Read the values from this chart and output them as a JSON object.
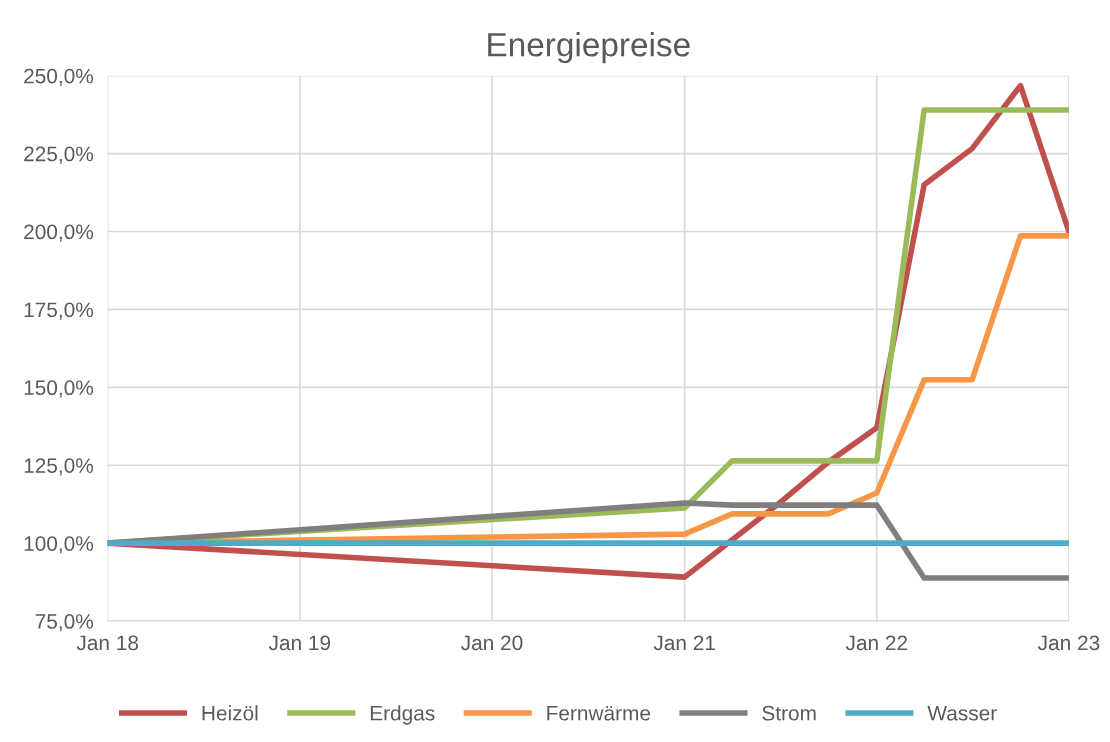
{
  "chart_data": {
    "type": "line",
    "title": "Energiepreise",
    "x": [
      "2018-01",
      "2021-01",
      "2021-04",
      "2021-07",
      "2021-10",
      "2022-01",
      "2022-04",
      "2022-07",
      "2022-10",
      "2023-01"
    ],
    "series": [
      {
        "name": "Heizöl",
        "color": "#c0504d",
        "values": [
          100,
          89.1,
          101,
          113,
          126,
          137,
          215,
          226.6,
          246.8,
          200
        ]
      },
      {
        "name": "Erdgas",
        "color": "#9bbb59",
        "values": [
          100,
          111.3,
          126.4,
          126.4,
          126.4,
          126.4,
          239,
          239,
          239,
          239
        ]
      },
      {
        "name": "Fernwärme",
        "color": "#f79646",
        "values": [
          100,
          102.9,
          109.4,
          109.4,
          109.4,
          116.1,
          152.4,
          152.4,
          198.6,
          198.6
        ]
      },
      {
        "name": "Strom",
        "color": "#7f7f7f",
        "values": [
          100,
          112.9,
          112.2,
          112.2,
          112.2,
          112.2,
          88.8,
          88.8,
          88.8,
          88.8
        ]
      },
      {
        "name": "Wasser",
        "color": "#4bacc6",
        "values": [
          100,
          100,
          100,
          100,
          100,
          100,
          100,
          100,
          100,
          100
        ]
      }
    ],
    "xlim": [
      "2018-01",
      "2023-01"
    ],
    "xticks": [
      {
        "value": "2018-01",
        "label": "Jan 18"
      },
      {
        "value": "2019-01",
        "label": "Jan 19"
      },
      {
        "value": "2020-01",
        "label": "Jan 20"
      },
      {
        "value": "2021-01",
        "label": "Jan 21"
      },
      {
        "value": "2022-01",
        "label": "Jan 22"
      },
      {
        "value": "2023-01",
        "label": "Jan 23"
      }
    ],
    "ylim": [
      75,
      250
    ],
    "yticks": [
      {
        "value": 75,
        "label": "75,0%"
      },
      {
        "value": 100,
        "label": "100,0%"
      },
      {
        "value": 125,
        "label": "125,0%"
      },
      {
        "value": 150,
        "label": "150,0%"
      },
      {
        "value": 175,
        "label": "175,0%"
      },
      {
        "value": 200,
        "label": "200,0%"
      },
      {
        "value": 225,
        "label": "225,0%"
      },
      {
        "value": 250,
        "label": "250,0%"
      }
    ],
    "grid": true,
    "legend": "bottom",
    "marker": "none",
    "line_style": "solid"
  }
}
